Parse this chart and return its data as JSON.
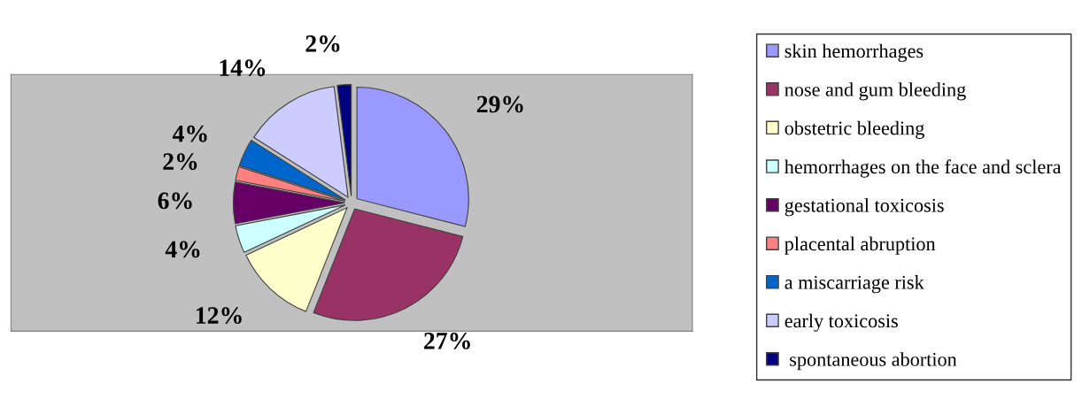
{
  "chart_data": {
    "type": "pie",
    "categories": [
      "skin hemorrhages",
      "nose and gum bleeding",
      "obstetric bleeding",
      "hemorrhages on the face and sclera",
      "gestational toxicosis",
      "placental abruption",
      "a miscarriage risk",
      "early toxicosis",
      " spontaneous abortion"
    ],
    "values": [
      29,
      27,
      12,
      4,
      6,
      2,
      4,
      14,
      2
    ],
    "value_labels": [
      "29%",
      "27%",
      "12%",
      "4%",
      "6%",
      "2%",
      "4%",
      "14%",
      "2%"
    ],
    "colors": [
      "#9999ff",
      "#993366",
      "#ffffcc",
      "#ccffff",
      "#660066",
      "#ff8080",
      "#0066cc",
      "#ccccff",
      "#000080"
    ],
    "legend": "right"
  }
}
